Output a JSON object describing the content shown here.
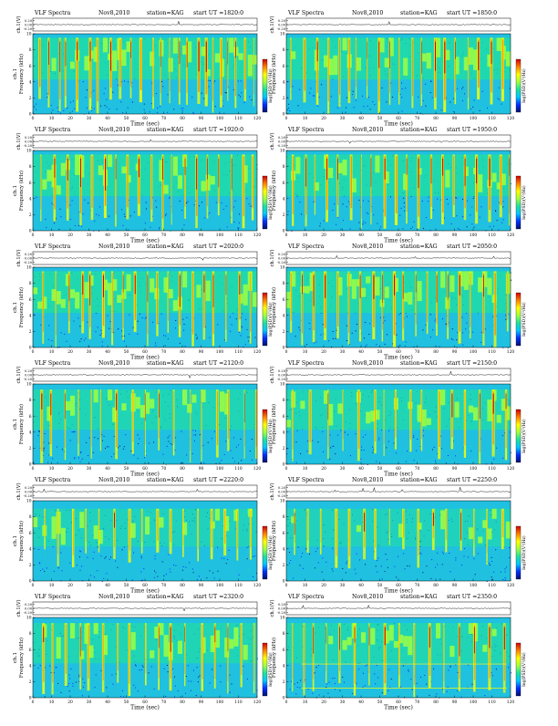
{
  "figure_header": {
    "title": "VLF Spectra",
    "date": "Nov8,2010",
    "station": "station=KAG",
    "start_prefix": "start  UT ="
  },
  "axis_text": {
    "ch_label": "ch.1(V)",
    "ylabel_left_col": "ch.1 Frequency (kHz)",
    "ylabel_right_col": "Frequency (kHz)",
    "xlabel": "Time (sec)",
    "colorbar_label": "log(PSD)(V²/Hz)"
  },
  "colors": {
    "background": "#20c0e0",
    "colormap": [
      "#001070",
      "#0030ff",
      "#00c8ff",
      "#20e0a0",
      "#a0ff40",
      "#ffff00",
      "#ff8000",
      "#d00000"
    ]
  },
  "chart_data": [
    {
      "type": "heatmap",
      "start_ut": "1820:0",
      "xlim": [
        0,
        120
      ],
      "ylim": [
        0,
        10
      ],
      "ch_ylim": [
        -0.3,
        0.3
      ],
      "ch_ticks": [
        "0.20",
        "0.00",
        "-0.20"
      ],
      "xticks": [
        0,
        10,
        20,
        30,
        40,
        50,
        60,
        70,
        80,
        90,
        100,
        110,
        120
      ],
      "yticks": [
        0,
        2,
        4,
        6,
        8,
        10
      ],
      "burst_times": [
        3,
        8,
        14,
        17,
        23,
        30,
        34,
        41,
        46,
        52,
        57,
        64,
        68,
        73,
        78,
        82,
        88,
        92,
        96,
        100,
        104,
        108,
        113,
        118
      ],
      "activity": "high",
      "cutoff_khz": 9.5
    },
    {
      "type": "heatmap",
      "start_ut": "1850:0",
      "xlim": [
        0,
        120
      ],
      "ylim": [
        0,
        10
      ],
      "ch_ylim": [
        -0.3,
        0.3
      ],
      "ch_ticks": [
        "0.20",
        "0.00",
        "-0.20"
      ],
      "xticks": [
        0,
        10,
        20,
        30,
        40,
        50,
        60,
        70,
        80,
        90,
        100,
        110,
        120
      ],
      "yticks": [
        0,
        2,
        4,
        6,
        8,
        10
      ],
      "burst_times": [
        2,
        9,
        16,
        22,
        28,
        33,
        37,
        43,
        49,
        55,
        60,
        67,
        72,
        79,
        84,
        90,
        97,
        102,
        109,
        115
      ],
      "activity": "high",
      "cutoff_khz": 9.5
    },
    {
      "type": "heatmap",
      "start_ut": "1920:0",
      "xlim": [
        0,
        120
      ],
      "ylim": [
        0,
        10
      ],
      "ch_ylim": [
        -0.3,
        0.3
      ],
      "ch_ticks": [
        "0.20",
        "0.00",
        "-0.20"
      ],
      "xticks": [
        0,
        10,
        20,
        30,
        40,
        50,
        60,
        70,
        80,
        90,
        100,
        110,
        120
      ],
      "yticks": [
        0,
        2,
        4,
        6,
        8,
        10
      ],
      "burst_times": [
        4,
        11,
        18,
        25,
        31,
        38,
        44,
        50,
        56,
        63,
        69,
        74,
        81,
        87,
        93,
        99,
        106,
        112,
        117
      ],
      "activity": "high",
      "cutoff_khz": 9.5
    },
    {
      "type": "heatmap",
      "start_ut": "1950:0",
      "xlim": [
        0,
        120
      ],
      "ylim": [
        0,
        10
      ],
      "ch_ylim": [
        -0.3,
        0.3
      ],
      "ch_ticks": [
        "0.20",
        "0.00",
        "-0.20"
      ],
      "xticks": [
        0,
        10,
        20,
        30,
        40,
        50,
        60,
        70,
        80,
        90,
        100,
        110,
        120
      ],
      "yticks": [
        0,
        2,
        4,
        6,
        8,
        10
      ],
      "burst_times": [
        3,
        10,
        15,
        21,
        27,
        34,
        40,
        45,
        52,
        58,
        64,
        70,
        77,
        83,
        89,
        95,
        101,
        108,
        114,
        119
      ],
      "activity": "high",
      "cutoff_khz": 9.5
    },
    {
      "type": "heatmap",
      "start_ut": "2020:0",
      "xlim": [
        0,
        120
      ],
      "ylim": [
        0,
        10
      ],
      "ch_ylim": [
        -0.3,
        0.3
      ],
      "ch_ticks": [
        "0.20",
        "0.00",
        "-0.20"
      ],
      "xticks": [
        0,
        10,
        20,
        30,
        40,
        50,
        60,
        70,
        80,
        90,
        100,
        110,
        120
      ],
      "yticks": [
        0,
        2,
        4,
        6,
        8,
        10
      ],
      "burst_times": [
        5,
        12,
        19,
        26,
        30,
        37,
        42,
        48,
        54,
        61,
        66,
        72,
        78,
        85,
        91,
        96,
        103,
        110,
        116
      ],
      "activity": "high",
      "cutoff_khz": 9.5
    },
    {
      "type": "heatmap",
      "start_ut": "2050:0",
      "xlim": [
        0,
        120
      ],
      "ylim": [
        0,
        10
      ],
      "ch_ylim": [
        -0.3,
        0.3
      ],
      "ch_ticks": [
        "0.20",
        "0.00",
        "-0.20"
      ],
      "xticks": [
        0,
        10,
        20,
        30,
        40,
        50,
        60,
        70,
        80,
        90,
        100,
        110,
        120
      ],
      "yticks": [
        0,
        2,
        4,
        6,
        8,
        10
      ],
      "burst_times": [
        2,
        8,
        14,
        20,
        27,
        33,
        39,
        46,
        51,
        57,
        62,
        69,
        75,
        80,
        86,
        92,
        98,
        105,
        111,
        118
      ],
      "activity": "high",
      "cutoff_khz": 9.5
    },
    {
      "type": "heatmap",
      "start_ut": "2120:0",
      "xlim": [
        0,
        120
      ],
      "ylim": [
        0,
        10
      ],
      "ch_ylim": [
        -0.3,
        0.3
      ],
      "ch_ticks": [
        "0.20",
        "0.00",
        "-0.20"
      ],
      "xticks": [
        0,
        10,
        20,
        30,
        40,
        50,
        60,
        70,
        80,
        90,
        100,
        110,
        120
      ],
      "yticks": [
        0,
        2,
        4,
        6,
        8,
        10
      ],
      "burst_times": [
        4,
        9,
        17,
        24,
        31,
        36,
        44,
        53,
        60,
        67,
        75,
        84,
        90,
        98,
        104,
        113,
        119
      ],
      "activity": "medium",
      "cutoff_khz": 9.3
    },
    {
      "type": "heatmap",
      "start_ut": "2150:0",
      "xlim": [
        0,
        120
      ],
      "ylim": [
        0,
        10
      ],
      "ch_ylim": [
        -0.3,
        0.3
      ],
      "ch_ticks": [
        "0.20",
        "0.00",
        "-0.20"
      ],
      "xticks": [
        0,
        10,
        20,
        30,
        40,
        50,
        60,
        70,
        80,
        90,
        100,
        110,
        120
      ],
      "yticks": [
        0,
        2,
        4,
        6,
        8,
        10
      ],
      "burst_times": [
        3,
        12,
        22,
        30,
        38,
        47,
        52,
        58,
        66,
        72,
        81,
        88,
        95,
        103,
        110,
        117
      ],
      "activity": "medium",
      "cutoff_khz": 9.3
    },
    {
      "type": "heatmap",
      "start_ut": "2220:0",
      "xlim": [
        0,
        120
      ],
      "ylim": [
        0,
        10
      ],
      "ch_ylim": [
        -0.3,
        0.3
      ],
      "ch_ticks": [
        "0.20",
        "0.00",
        "-0.20"
      ],
      "xticks": [
        0,
        10,
        20,
        30,
        40,
        50,
        60,
        70,
        80,
        90,
        100,
        110,
        120
      ],
      "yticks": [
        0,
        2,
        4,
        6,
        8,
        10
      ],
      "burst_times": [
        6,
        13,
        21,
        28,
        35,
        43,
        51,
        58,
        66,
        73,
        80,
        88,
        95,
        102,
        109,
        116
      ],
      "activity": "low",
      "cutoff_khz": 9.0
    },
    {
      "type": "heatmap",
      "start_ut": "2250:0",
      "xlim": [
        0,
        120
      ],
      "ylim": [
        0,
        10
      ],
      "ch_ylim": [
        -0.3,
        0.3
      ],
      "ch_ticks": [
        "0.20",
        "0.00",
        "-0.20"
      ],
      "xticks": [
        0,
        10,
        20,
        30,
        40,
        50,
        60,
        70,
        80,
        90,
        100,
        110,
        120
      ],
      "yticks": [
        0,
        2,
        4,
        6,
        8,
        10
      ],
      "burst_times": [
        4,
        11,
        18,
        26,
        33,
        41,
        47,
        55,
        62,
        70,
        78,
        85,
        93,
        100,
        107,
        115
      ],
      "activity": "low",
      "cutoff_khz": 9.0
    },
    {
      "type": "heatmap",
      "start_ut": "2320:0",
      "xlim": [
        0,
        120
      ],
      "ylim": [
        0,
        10
      ],
      "ch_ylim": [
        -0.3,
        0.3
      ],
      "ch_ticks": [
        "0.20",
        "0.00",
        "-0.20"
      ],
      "xticks": [
        0,
        10,
        20,
        30,
        40,
        50,
        60,
        70,
        80,
        90,
        100,
        110,
        120
      ],
      "yticks": [
        0,
        2,
        4,
        6,
        8,
        10
      ],
      "burst_times": [
        5,
        10,
        17,
        25,
        29,
        37,
        45,
        51,
        60,
        67,
        73,
        81,
        90,
        97,
        104,
        111,
        118
      ],
      "activity": "medium",
      "cutoff_khz": 9.3
    },
    {
      "type": "heatmap",
      "start_ut": "2350:0",
      "xlim": [
        0,
        120
      ],
      "ylim": [
        0,
        10
      ],
      "ch_ylim": [
        -0.3,
        0.3
      ],
      "ch_ticks": [
        "0.20",
        "0.00",
        "-0.20"
      ],
      "xticks": [
        0,
        10,
        20,
        30,
        40,
        50,
        60,
        70,
        80,
        90,
        100,
        110,
        120
      ],
      "yticks": [
        0,
        2,
        4,
        6,
        8,
        10
      ],
      "burst_times": [
        3,
        9,
        14,
        21,
        28,
        36,
        44,
        52,
        60,
        68,
        76,
        84,
        92,
        100,
        108,
        116
      ],
      "activity": "medium",
      "cutoff_khz": 9.3,
      "tone_lines_khz": [
        4.2,
        1.2
      ]
    }
  ]
}
